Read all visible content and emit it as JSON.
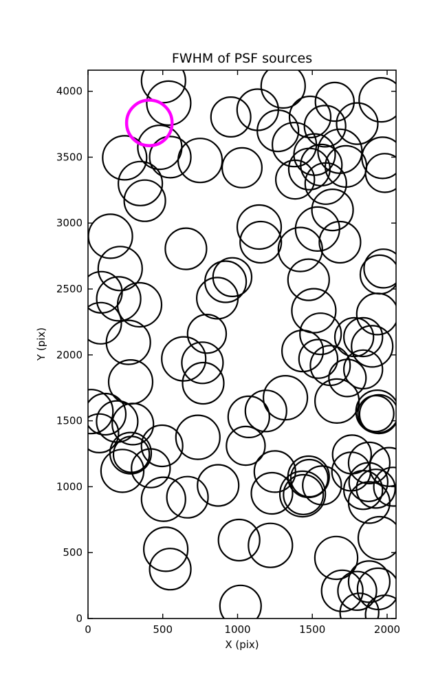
{
  "page": {
    "background": "#ffffff"
  },
  "chart_data": {
    "type": "scatter",
    "title": "FWHM of PSF sources",
    "xlabel": "X (pix)",
    "ylabel": "Y (pix)",
    "xlim": [
      0,
      2060
    ],
    "ylim": [
      0,
      4160
    ],
    "xticks": [
      0,
      500,
      1000,
      1500,
      2000
    ],
    "yticks": [
      0,
      500,
      1000,
      1500,
      2000,
      2500,
      3000,
      3500,
      4000
    ],
    "grid": false,
    "legend": "none",
    "marker_style": {
      "shape": "open-circle",
      "fill": "none",
      "edge_color": "#000000",
      "edge_width": 2.2
    },
    "highlight": {
      "x": 410,
      "y": 3760,
      "r": 152,
      "color": "#ff00ff",
      "edge_width": 4.5
    },
    "points": [
      [
        505,
        4080,
        147
      ],
      [
        540,
        3910,
        147
      ],
      [
        480,
        3575,
        147
      ],
      [
        245,
        3495,
        147
      ],
      [
        550,
        3500,
        138
      ],
      [
        750,
        3475,
        147
      ],
      [
        955,
        3805,
        133
      ],
      [
        1030,
        3420,
        133
      ],
      [
        350,
        3300,
        147
      ],
      [
        380,
        3170,
        138
      ],
      [
        1305,
        4040,
        147
      ],
      [
        1135,
        3860,
        138
      ],
      [
        1270,
        3700,
        138
      ],
      [
        1650,
        3920,
        129
      ],
      [
        1960,
        3935,
        147
      ],
      [
        1485,
        3805,
        138
      ],
      [
        1585,
        3735,
        138
      ],
      [
        1380,
        3595,
        147
      ],
      [
        1515,
        3520,
        138
      ],
      [
        1560,
        3440,
        138
      ],
      [
        1480,
        3410,
        138
      ],
      [
        1685,
        3545,
        147
      ],
      [
        1725,
        3430,
        138
      ],
      [
        1800,
        3755,
        138
      ],
      [
        1970,
        3495,
        138
      ],
      [
        1985,
        3380,
        129
      ],
      [
        1385,
        3330,
        129
      ],
      [
        1590,
        3300,
        138
      ],
      [
        150,
        2900,
        147
      ],
      [
        215,
        2655,
        147
      ],
      [
        655,
        2805,
        138
      ],
      [
        90,
        2475,
        138
      ],
      [
        205,
        2425,
        147
      ],
      [
        345,
        2380,
        147
      ],
      [
        85,
        2240,
        138
      ],
      [
        270,
        2095,
        147
      ],
      [
        795,
        2160,
        129
      ],
      [
        920,
        2555,
        138
      ],
      [
        965,
        2590,
        129
      ],
      [
        865,
        2430,
        138
      ],
      [
        1145,
        2970,
        147
      ],
      [
        1155,
        2855,
        138
      ],
      [
        1535,
        2955,
        147
      ],
      [
        1635,
        3100,
        138
      ],
      [
        1685,
        2855,
        138
      ],
      [
        1420,
        2800,
        147
      ],
      [
        1475,
        2570,
        138
      ],
      [
        1510,
        2335,
        147
      ],
      [
        1555,
        2160,
        138
      ],
      [
        1975,
        2655,
        129
      ],
      [
        1950,
        2610,
        129
      ],
      [
        1935,
        2310,
        138
      ],
      [
        285,
        1795,
        147
      ],
      [
        640,
        1970,
        147
      ],
      [
        765,
        1940,
        138
      ],
      [
        770,
        1785,
        138
      ],
      [
        20,
        1570,
        147
      ],
      [
        115,
        1550,
        138
      ],
      [
        195,
        1495,
        138
      ],
      [
        300,
        1475,
        138
      ],
      [
        75,
        1405,
        129
      ],
      [
        285,
        1255,
        138
      ],
      [
        290,
        1245,
        120
      ],
      [
        230,
        1120,
        143
      ],
      [
        495,
        1310,
        138
      ],
      [
        420,
        1140,
        129
      ],
      [
        735,
        1375,
        147
      ],
      [
        1075,
        1530,
        138
      ],
      [
        1055,
        1310,
        129
      ],
      [
        1435,
        2030,
        138
      ],
      [
        1540,
        1970,
        129
      ],
      [
        1620,
        1920,
        133
      ],
      [
        1780,
        2135,
        129
      ],
      [
        1840,
        2135,
        129
      ],
      [
        1900,
        2065,
        138
      ],
      [
        1735,
        1825,
        124
      ],
      [
        1840,
        1890,
        129
      ],
      [
        1320,
        1675,
        147
      ],
      [
        1190,
        1575,
        138
      ],
      [
        1665,
        1650,
        147
      ],
      [
        1935,
        1570,
        143
      ],
      [
        1945,
        1550,
        129
      ],
      [
        1925,
        1555,
        120
      ],
      [
        1250,
        1115,
        138
      ],
      [
        1475,
        1075,
        138
      ],
      [
        1480,
        1065,
        124
      ],
      [
        1765,
        1245,
        129
      ],
      [
        1880,
        1180,
        138
      ],
      [
        1760,
        1115,
        129
      ],
      [
        1875,
        1035,
        129
      ],
      [
        2013,
        1150,
        129
      ],
      [
        505,
        905,
        147
      ],
      [
        665,
        920,
        138
      ],
      [
        870,
        1010,
        138
      ],
      [
        520,
        525,
        147
      ],
      [
        550,
        375,
        138
      ],
      [
        1010,
        595,
        138
      ],
      [
        1020,
        95,
        138
      ],
      [
        1230,
        950,
        138
      ],
      [
        1435,
        945,
        152
      ],
      [
        1440,
        940,
        133
      ],
      [
        1565,
        1010,
        129
      ],
      [
        1840,
        975,
        129
      ],
      [
        1925,
        985,
        129
      ],
      [
        1880,
        880,
        138
      ],
      [
        2040,
        1000,
        129
      ],
      [
        1950,
        610,
        143
      ],
      [
        1220,
        555,
        147
      ],
      [
        1660,
        460,
        143
      ],
      [
        1700,
        210,
        138
      ],
      [
        1800,
        210,
        129
      ],
      [
        1880,
        280,
        138
      ],
      [
        1940,
        225,
        138
      ],
      [
        1815,
        45,
        129
      ],
      [
        1985,
        30,
        129
      ]
    ]
  }
}
